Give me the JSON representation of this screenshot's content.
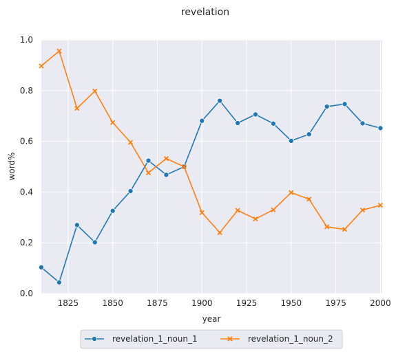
{
  "chart_data": {
    "type": "line",
    "title": "revelation",
    "xlabel": "year",
    "ylabel": "word%",
    "xlim": [
      1810,
      2001
    ],
    "ylim": [
      0.0,
      1.0
    ],
    "x_ticks": [
      1825,
      1850,
      1875,
      1900,
      1925,
      1950,
      1975,
      2000
    ],
    "y_ticks": [
      0.0,
      0.2,
      0.4,
      0.6,
      0.8,
      1.0
    ],
    "x_tick_labels": [
      "1825",
      "1850",
      "1875",
      "1900",
      "1925",
      "1950",
      "1975",
      "2000"
    ],
    "y_tick_labels": [
      "0.0",
      "0.2",
      "0.4",
      "0.6",
      "0.8",
      "1.0"
    ],
    "grid": true,
    "legend_position": "bottom-center",
    "x": [
      1810,
      1820,
      1830,
      1840,
      1850,
      1860,
      1870,
      1880,
      1890,
      1900,
      1910,
      1920,
      1930,
      1940,
      1950,
      1960,
      1970,
      1980,
      1990,
      2000
    ],
    "series": [
      {
        "name": "revelation_1_noun_1",
        "color": "#1f77b4",
        "marker": "circle",
        "values": [
          0.103,
          0.044,
          0.27,
          0.202,
          0.326,
          0.404,
          0.524,
          0.468,
          0.5,
          0.681,
          0.76,
          0.672,
          0.706,
          0.67,
          0.602,
          0.628,
          0.737,
          0.747,
          0.671,
          0.652
        ]
      },
      {
        "name": "revelation_1_noun_2",
        "color": "#ff7f0e",
        "marker": "x",
        "values": [
          0.897,
          0.956,
          0.73,
          0.798,
          0.674,
          0.596,
          0.476,
          0.532,
          0.5,
          0.319,
          0.24,
          0.328,
          0.294,
          0.33,
          0.398,
          0.372,
          0.263,
          0.253,
          0.329,
          0.348
        ]
      }
    ]
  }
}
